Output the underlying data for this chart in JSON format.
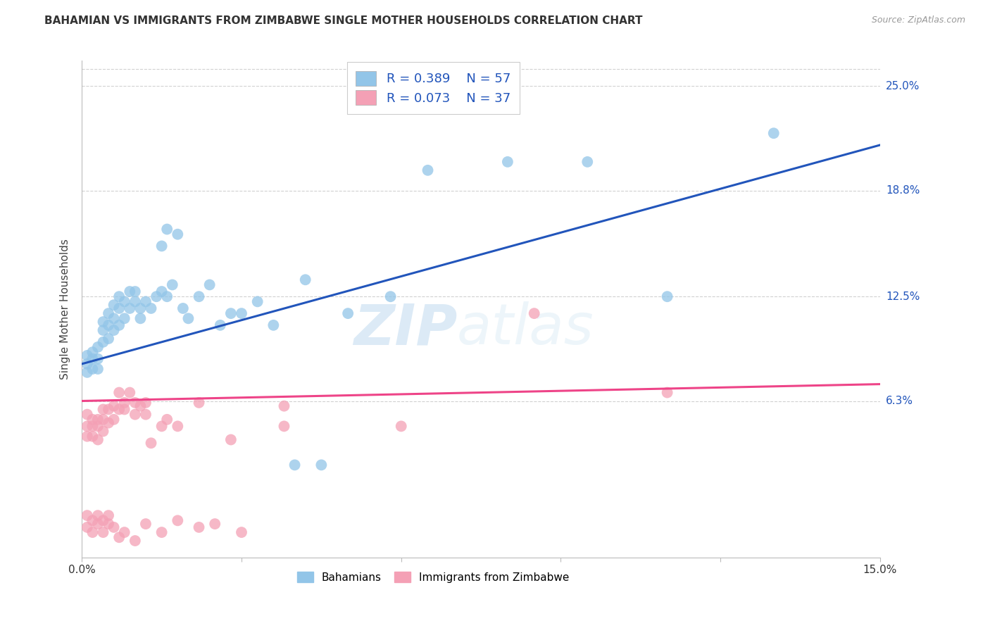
{
  "title": "BAHAMIAN VS IMMIGRANTS FROM ZIMBABWE SINGLE MOTHER HOUSEHOLDS CORRELATION CHART",
  "source": "Source: ZipAtlas.com",
  "ylabel": "Single Mother Households",
  "xmin": 0.0,
  "xmax": 0.15,
  "ymin": -0.03,
  "ymax": 0.265,
  "yticks": [
    0.063,
    0.125,
    0.188,
    0.25
  ],
  "ytick_labels": [
    "6.3%",
    "12.5%",
    "18.8%",
    "25.0%"
  ],
  "xticks": [
    0.0,
    0.03,
    0.06,
    0.09,
    0.12,
    0.15
  ],
  "xtick_labels": [
    "0.0%",
    "",
    "",
    "",
    "",
    "15.0%"
  ],
  "background_color": "#ffffff",
  "grid_color": "#cccccc",
  "blue_color": "#92C5E8",
  "pink_color": "#F4A0B5",
  "blue_line_color": "#2255BB",
  "pink_line_color": "#EE4488",
  "watermark": "ZIPatlas",
  "legend_label_blue": "Bahamians",
  "legend_label_pink": "Immigrants from Zimbabwe",
  "legend_R_blue": "R = 0.389",
  "legend_N_blue": "N = 57",
  "legend_R_pink": "R = 0.073",
  "legend_N_pink": "N = 37",
  "blue_line_x0": 0.0,
  "blue_line_x1": 0.15,
  "blue_line_y0": 0.085,
  "blue_line_y1": 0.215,
  "pink_line_x0": 0.0,
  "pink_line_x1": 0.15,
  "pink_line_y0": 0.063,
  "pink_line_y1": 0.073,
  "blue_scatter_x": [
    0.001,
    0.001,
    0.001,
    0.002,
    0.002,
    0.002,
    0.003,
    0.003,
    0.003,
    0.004,
    0.004,
    0.004,
    0.005,
    0.005,
    0.005,
    0.006,
    0.006,
    0.006,
    0.007,
    0.007,
    0.007,
    0.008,
    0.008,
    0.009,
    0.009,
    0.01,
    0.01,
    0.011,
    0.011,
    0.012,
    0.013,
    0.014,
    0.015,
    0.016,
    0.017,
    0.018,
    0.019,
    0.02,
    0.022,
    0.024,
    0.026,
    0.028,
    0.03,
    0.033,
    0.036,
    0.04,
    0.045,
    0.05,
    0.015,
    0.016,
    0.042,
    0.058,
    0.065,
    0.08,
    0.095,
    0.11,
    0.13
  ],
  "blue_scatter_y": [
    0.09,
    0.085,
    0.08,
    0.092,
    0.088,
    0.082,
    0.095,
    0.088,
    0.082,
    0.098,
    0.105,
    0.11,
    0.1,
    0.108,
    0.115,
    0.105,
    0.112,
    0.12,
    0.108,
    0.118,
    0.125,
    0.112,
    0.122,
    0.118,
    0.128,
    0.122,
    0.128,
    0.118,
    0.112,
    0.122,
    0.118,
    0.125,
    0.128,
    0.125,
    0.132,
    0.162,
    0.118,
    0.112,
    0.125,
    0.132,
    0.108,
    0.115,
    0.115,
    0.122,
    0.108,
    0.025,
    0.025,
    0.115,
    0.155,
    0.165,
    0.135,
    0.125,
    0.2,
    0.205,
    0.205,
    0.125,
    0.222
  ],
  "pink_scatter_x": [
    0.001,
    0.001,
    0.001,
    0.002,
    0.002,
    0.002,
    0.003,
    0.003,
    0.003,
    0.004,
    0.004,
    0.004,
    0.005,
    0.005,
    0.006,
    0.006,
    0.007,
    0.007,
    0.008,
    0.008,
    0.009,
    0.01,
    0.01,
    0.011,
    0.012,
    0.012,
    0.013,
    0.015,
    0.016,
    0.018,
    0.022,
    0.028,
    0.038,
    0.038,
    0.06,
    0.085,
    0.11
  ],
  "pink_scatter_y": [
    0.055,
    0.048,
    0.042,
    0.052,
    0.048,
    0.042,
    0.048,
    0.04,
    0.052,
    0.058,
    0.052,
    0.045,
    0.05,
    0.058,
    0.052,
    0.06,
    0.058,
    0.068,
    0.058,
    0.062,
    0.068,
    0.062,
    0.055,
    0.06,
    0.062,
    0.055,
    0.038,
    0.048,
    0.052,
    0.048,
    0.062,
    0.04,
    0.06,
    0.048,
    0.048,
    0.115,
    0.068
  ],
  "pink_below_x": [
    0.001,
    0.001,
    0.002,
    0.002,
    0.003,
    0.003,
    0.004,
    0.004,
    0.005,
    0.005,
    0.006,
    0.007,
    0.008,
    0.01,
    0.012,
    0.015,
    0.018,
    0.022,
    0.025,
    0.03
  ],
  "pink_below_y": [
    -0.005,
    -0.012,
    -0.008,
    -0.015,
    -0.005,
    -0.01,
    -0.008,
    -0.015,
    -0.005,
    -0.01,
    -0.012,
    -0.018,
    -0.015,
    -0.02,
    -0.01,
    -0.015,
    -0.008,
    -0.012,
    -0.01,
    -0.015
  ]
}
